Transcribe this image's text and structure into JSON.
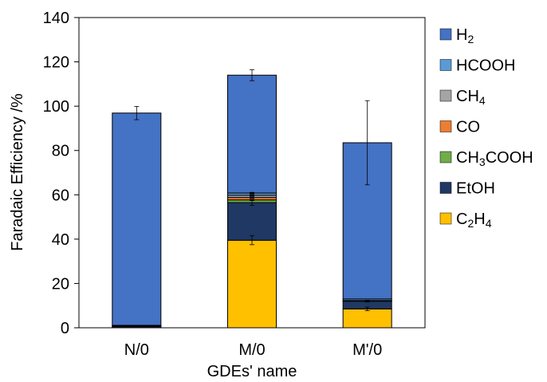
{
  "chart_data": {
    "type": "bar",
    "stacked": true,
    "categories": [
      "N/0",
      "M/0",
      "M'/0"
    ],
    "xlabel": "GDEs' name",
    "ylabel": "Faradaic Efficiency /%",
    "ylim": [
      0,
      140
    ],
    "yticks": [
      0,
      20,
      40,
      60,
      80,
      100,
      120,
      140
    ],
    "grid": false,
    "legend_position": "right",
    "series": [
      {
        "name": "C2H4",
        "name_main": "C",
        "name_sub1": "2",
        "name_mid": "H",
        "name_sub2": "4",
        "color": "#FFC000",
        "values": [
          0,
          39.5,
          8.5
        ],
        "err": [
          0,
          2.0,
          0.8
        ]
      },
      {
        "name": "EtOH",
        "name_main": "EtOH",
        "color": "#203864",
        "values": [
          0.5,
          17,
          3.5
        ],
        "err": [
          0,
          1.2,
          0.4
        ]
      },
      {
        "name": "CH3COOH",
        "name_main": "CH",
        "name_sub1": "3",
        "name_mid": "COOH",
        "color": "#70AD47",
        "values": [
          0,
          1.2,
          0
        ],
        "err": [
          0,
          0.3,
          0
        ]
      },
      {
        "name": "CO",
        "name_main": "CO",
        "color": "#ED7D31",
        "values": [
          0,
          1.1,
          0
        ],
        "err": [
          0,
          0.3,
          0
        ]
      },
      {
        "name": "CH4",
        "name_main": "CH",
        "name_sub1": "4",
        "color": "#A5A5A5",
        "values": [
          0.3,
          1.0,
          0.3
        ],
        "err": [
          0,
          0.3,
          0
        ]
      },
      {
        "name": "HCOOH",
        "name_main": "HCOOH",
        "color": "#5B9BD5",
        "values": [
          0.3,
          1.0,
          0.7
        ],
        "err": [
          0,
          0.3,
          0
        ]
      },
      {
        "name": "H2",
        "name_main": "H",
        "name_sub1": "2",
        "color": "#4472C4",
        "values": [
          95.8,
          53.2,
          70.5
        ],
        "err": [
          3.0,
          2.5,
          19.0
        ]
      }
    ]
  }
}
